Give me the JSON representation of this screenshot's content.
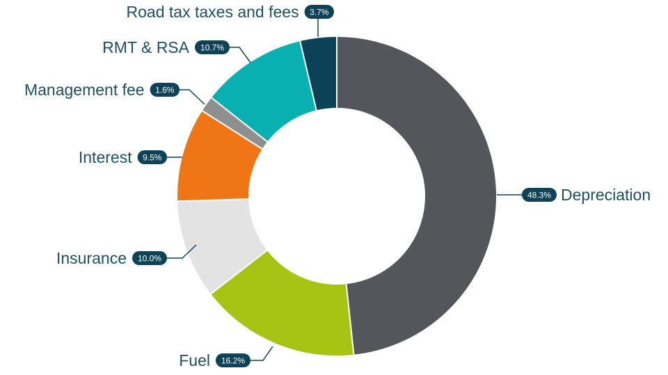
{
  "chart_data": {
    "type": "pie",
    "variant": "donut",
    "title": "",
    "legend": "none",
    "categories": [
      "Depreciation",
      "Fuel",
      "Insurance",
      "Interest",
      "Management fee",
      "RMT & RSA",
      "Road tax taxes and fees"
    ],
    "values": [
      48.3,
      16.2,
      10.0,
      9.5,
      1.6,
      10.7,
      3.7
    ],
    "value_labels": [
      "48.3%",
      "16.2%",
      "10.0%",
      "9.5%",
      "1.6%",
      "10.7%",
      "3.7%"
    ],
    "unit": "%",
    "colors": [
      "#53565a",
      "#a7c414",
      "#e3e3e3",
      "#f07615",
      "#8f8f8f",
      "#08b0b1",
      "#0b4258"
    ],
    "label_color": "#1f4f63",
    "badge_color": "#0d4257"
  }
}
